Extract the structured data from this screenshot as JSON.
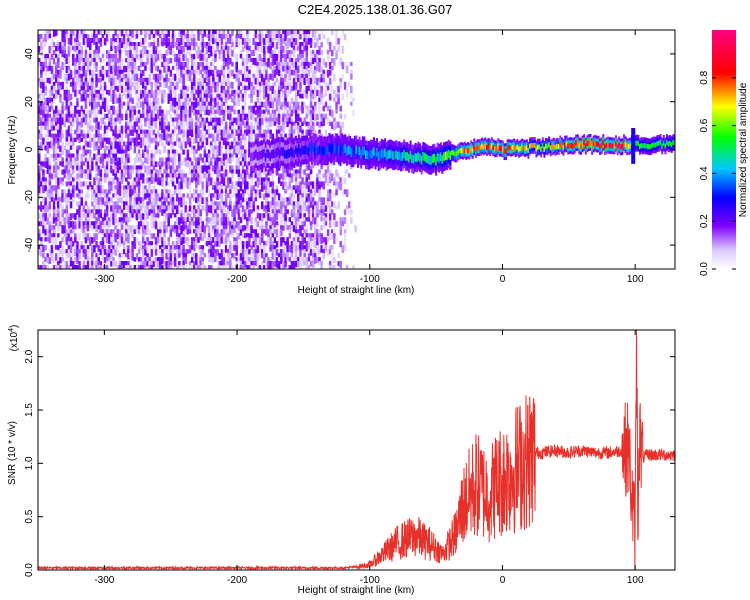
{
  "title": "C2E4.2025.138.01.36.G07",
  "chart_data": [
    {
      "type": "heatmap",
      "xlabel": "Height of straight line (km)",
      "ylabel": "Frequency (Hz)",
      "xlim": [
        -350,
        130
      ],
      "ylim": [
        -50,
        50
      ],
      "xticks": [
        -300,
        -200,
        -100,
        0,
        100
      ],
      "yticks": [
        -40,
        -20,
        0,
        20,
        40
      ],
      "colorbar": {
        "label": "Normalized spectral amplitude",
        "range": [
          0.0,
          1.0
        ],
        "ticks": [
          0.0,
          0.2,
          0.4,
          0.6,
          0.8
        ],
        "colors": [
          "#ffffff",
          "#7f00ff",
          "#0000ff",
          "#00ffff",
          "#00ff00",
          "#ffff00",
          "#ff0000",
          "#ff007f"
        ]
      },
      "noise_region": {
        "x_start": -350,
        "x_end": -110,
        "amplitude": 0.15
      },
      "signal_ridge": [
        {
          "x": -190,
          "y": -3,
          "amplitude": 0.18
        },
        {
          "x": -145,
          "y": 0,
          "amplitude": 0.3
        },
        {
          "x": -120,
          "y": 0,
          "amplitude": 0.35
        },
        {
          "x": -95,
          "y": -2,
          "amplitude": 0.4
        },
        {
          "x": -70,
          "y": -3,
          "amplitude": 0.45
        },
        {
          "x": -50,
          "y": -4,
          "amplitude": 0.5
        },
        {
          "x": -30,
          "y": 0,
          "amplitude": 0.7
        },
        {
          "x": -10,
          "y": 1,
          "amplitude": 0.75
        },
        {
          "x": 0,
          "y": 0,
          "amplitude": 0.8
        },
        {
          "x": 30,
          "y": 1,
          "amplitude": 0.6
        },
        {
          "x": 60,
          "y": 2,
          "amplitude": 0.85
        },
        {
          "x": 90,
          "y": 2,
          "amplitude": 0.85
        },
        {
          "x": 100,
          "y": 2,
          "amplitude": 0.5
        },
        {
          "x": 130,
          "y": 2,
          "amplitude": 0.5
        }
      ]
    },
    {
      "type": "line",
      "xlabel": "Height of straight line (km)",
      "ylabel": "SNR (10 * v/v)",
      "yscale_label": "(x10",
      "yscale_exponent": "4",
      "xlim": [
        -350,
        130
      ],
      "ylim": [
        0.0,
        2.25
      ],
      "xticks": [
        -300,
        -200,
        -100,
        0,
        100
      ],
      "yticks": [
        "0.0",
        "0.5",
        "1.0",
        "1.5",
        "2.0"
      ],
      "color": "#e8302a",
      "series": [
        {
          "x": [
            -350,
            -300,
            -250,
            -200,
            -150,
            -120,
            -110,
            -100,
            -95,
            -90,
            -85,
            -80,
            -75,
            -70,
            -65,
            -60,
            -55,
            -50,
            -45,
            -40,
            -35,
            -30,
            -25,
            -20,
            -15,
            -10,
            -5,
            0,
            5,
            10,
            15,
            20,
            25,
            30,
            40,
            50,
            60,
            70,
            80,
            90,
            95,
            98,
            100,
            101,
            102,
            103,
            105,
            110,
            120,
            130
          ],
          "y": [
            0.02,
            0.02,
            0.02,
            0.02,
            0.02,
            0.02,
            0.03,
            0.05,
            0.1,
            0.15,
            0.2,
            0.25,
            0.28,
            0.3,
            0.32,
            0.28,
            0.25,
            0.2,
            0.15,
            0.25,
            0.35,
            0.6,
            0.7,
            0.8,
            0.75,
            0.7,
            0.8,
            0.85,
            0.9,
            0.95,
            1.0,
            1.05,
            1.1,
            1.1,
            1.12,
            1.1,
            1.12,
            1.1,
            1.1,
            1.12,
            1.15,
            0.6,
            0.3,
            2.25,
            0.5,
            1.3,
            1.05,
            1.08,
            1.08,
            1.08
          ]
        }
      ]
    }
  ]
}
